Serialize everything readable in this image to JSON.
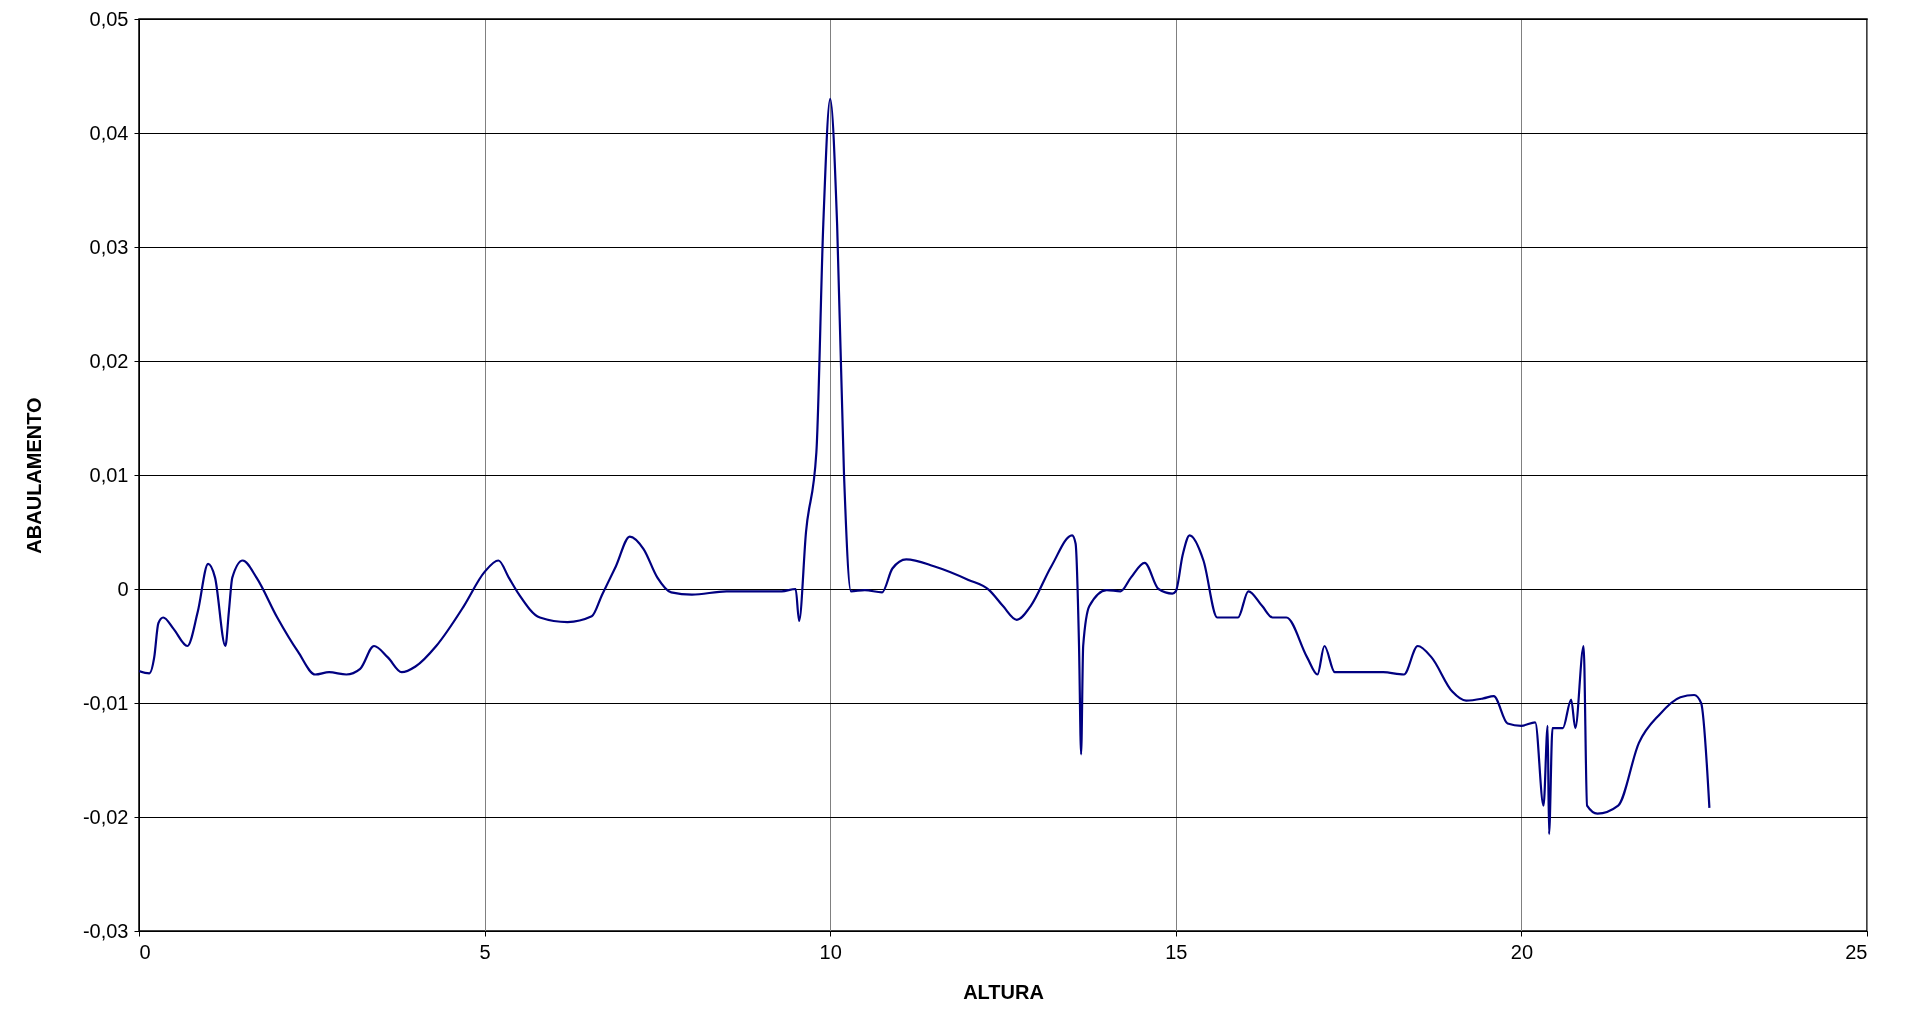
{
  "chart_data": {
    "type": "line",
    "xlabel": "ALTURA",
    "ylabel": "ABAULAMENTO",
    "x": [
      0,
      0.15,
      0.22,
      0.28,
      0.35,
      0.5,
      0.7,
      0.85,
      1.0,
      1.1,
      1.25,
      1.3,
      1.35,
      1.5,
      1.7,
      2.0,
      2.3,
      2.55,
      2.75,
      3.0,
      3.2,
      3.4,
      3.6,
      3.8,
      4.0,
      4.3,
      4.7,
      5.0,
      5.2,
      5.35,
      5.5,
      5.8,
      6.2,
      6.55,
      6.7,
      6.9,
      7.1,
      7.3,
      7.5,
      7.7,
      8.0,
      8.5,
      9.0,
      9.3,
      9.5,
      9.55,
      9.65,
      9.8,
      9.9,
      10.0,
      10.1,
      10.2,
      10.3,
      10.5,
      10.75,
      10.9,
      11.1,
      11.5,
      12.0,
      12.3,
      12.5,
      12.7,
      12.9,
      13.2,
      13.5,
      13.55,
      13.6,
      13.63,
      13.66,
      13.75,
      14.0,
      14.2,
      14.35,
      14.55,
      14.75,
      14.95,
      15.0,
      15.1,
      15.2,
      15.4,
      15.6,
      15.9,
      16.05,
      16.25,
      16.4,
      16.6,
      16.9,
      17.05,
      17.15,
      17.3,
      17.5,
      18.0,
      18.3,
      18.5,
      18.7,
      19.0,
      19.2,
      19.45,
      19.6,
      19.8,
      20.0,
      20.2,
      20.32,
      20.38,
      20.4,
      20.45,
      20.6,
      20.72,
      20.78,
      20.9,
      20.95,
      21.1,
      21.4,
      21.7,
      22.0,
      22.3,
      22.5,
      22.6,
      22.72
    ],
    "series": [
      {
        "color": "#000080",
        "values": [
          -0.0072,
          -0.0074,
          -0.006,
          -0.003,
          -0.0025,
          -0.0035,
          -0.005,
          -0.002,
          0.0022,
          0.001,
          -0.005,
          -0.002,
          0.001,
          0.0025,
          0.001,
          -0.0025,
          -0.0055,
          -0.0075,
          -0.0073,
          -0.0075,
          -0.007,
          -0.005,
          -0.006,
          -0.0073,
          -0.0068,
          -0.005,
          -0.0015,
          0.0015,
          0.0025,
          0.001,
          -0.0005,
          -0.0025,
          -0.0029,
          -0.0024,
          -0.0005,
          0.002,
          0.0046,
          0.0035,
          0.001,
          -0.0003,
          -0.0005,
          -0.0002,
          -0.0002,
          -0.0002,
          0.0,
          -0.0028,
          0.005,
          0.012,
          0.032,
          0.043,
          0.032,
          0.01,
          -0.0002,
          -0.0001,
          -0.0003,
          0.0018,
          0.0026,
          0.002,
          0.0008,
          -0.0001,
          -0.0015,
          -0.0027,
          -0.0015,
          0.002,
          0.0047,
          0.004,
          -0.005,
          -0.0145,
          -0.005,
          -0.0015,
          -0.0001,
          -0.0002,
          0.001,
          0.0023,
          0.0,
          -0.0004,
          -0.0002,
          0.003,
          0.0047,
          0.0025,
          -0.0025,
          -0.0025,
          -0.0002,
          -0.0015,
          -0.0025,
          -0.0025,
          -0.006,
          -0.0075,
          -0.005,
          -0.0073,
          -0.0073,
          -0.0073,
          -0.0075,
          -0.005,
          -0.006,
          -0.009,
          -0.0098,
          -0.0096,
          -0.0094,
          -0.0118,
          -0.012,
          -0.0117,
          -0.019,
          -0.012,
          -0.0215,
          -0.0122,
          -0.0122,
          -0.0097,
          -0.0122,
          -0.005,
          -0.019,
          -0.0197,
          -0.019,
          -0.0135,
          -0.011,
          -0.0095,
          -0.0093,
          -0.01,
          -0.0192
        ]
      }
    ],
    "xlim": [
      0,
      25
    ],
    "xticks": [
      0,
      5,
      10,
      15,
      20,
      25
    ],
    "ylim": [
      -0.03,
      0.05
    ],
    "yticks": [
      {
        "value": -0.03,
        "label": "-0,03"
      },
      {
        "value": -0.02,
        "label": "-0,02"
      },
      {
        "value": -0.01,
        "label": "-0,01"
      },
      {
        "value": 0,
        "label": "0"
      },
      {
        "value": 0.01,
        "label": "0,01"
      },
      {
        "value": 0.02,
        "label": "0,02"
      },
      {
        "value": 0.03,
        "label": "0,03"
      },
      {
        "value": 0.04,
        "label": "0,04"
      },
      {
        "value": 0.05,
        "label": "0,05"
      }
    ],
    "grid": true,
    "line_style": "solid"
  }
}
